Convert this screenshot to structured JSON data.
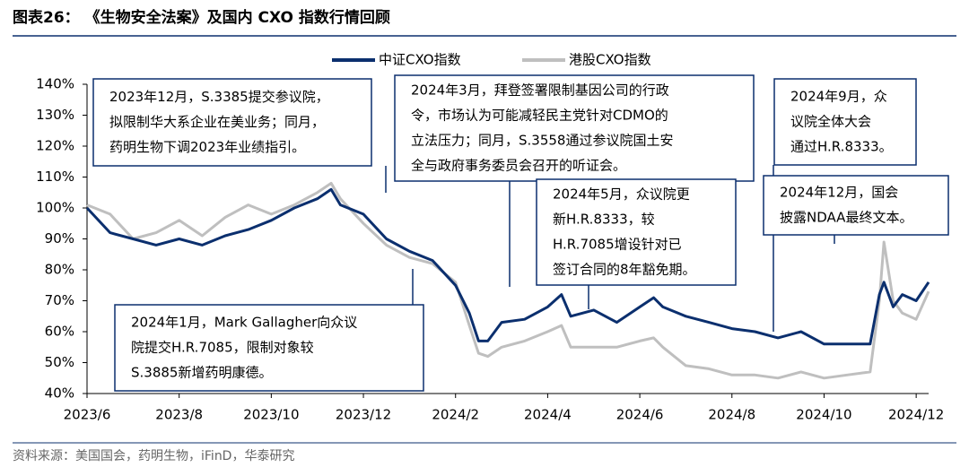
{
  "chart_data": {
    "type": "line",
    "title": "图表26：  《生物安全法案》及国内 CXO 指数行情回顾",
    "source": "资料来源：美国国会，药明生物，iFinD，华泰研究",
    "x": [
      0,
      0.5,
      1,
      1.5,
      2,
      2.5,
      3,
      3.5,
      4,
      4.5,
      5,
      5.3,
      5.5,
      6,
      6.5,
      7,
      7.5,
      8,
      8.3,
      8.5,
      8.7,
      9,
      9.5,
      10,
      10.3,
      10.5,
      11,
      11.5,
      12,
      12.3,
      12.5,
      13,
      13.5,
      14,
      14.5,
      15,
      15.5,
      16,
      16.5,
      17,
      17.2,
      17.3,
      17.5,
      17.7,
      18,
      18.27
    ],
    "series": [
      {
        "name": "中证CXO指数",
        "color": "#0b2f6e",
        "values": [
          100,
          92,
          90,
          88,
          90,
          88,
          91,
          93,
          96,
          100,
          103,
          106,
          101,
          98,
          90,
          86,
          83,
          75,
          66,
          57,
          57,
          63,
          64,
          68,
          72,
          65,
          67,
          63,
          68,
          71,
          68,
          65,
          63,
          61,
          60,
          58,
          60,
          56,
          56,
          56,
          72,
          76,
          68,
          72,
          70,
          76
        ]
      },
      {
        "name": "港股CXO指数",
        "color": "#bfbfbf",
        "values": [
          101,
          98,
          90,
          92,
          96,
          91,
          97,
          101,
          98,
          101,
          105,
          108,
          103,
          95,
          88,
          84,
          82,
          76,
          62,
          53,
          52,
          55,
          57,
          60,
          62,
          55,
          55,
          55,
          57,
          58,
          55,
          49,
          48,
          46,
          46,
          45,
          47,
          45,
          46,
          47,
          70,
          89,
          70,
          66,
          64,
          73
        ]
      }
    ],
    "xlim": [
      0,
      18.27
    ],
    "xticks": [
      {
        "value": 0,
        "label": "2023/6"
      },
      {
        "value": 2,
        "label": "2023/8"
      },
      {
        "value": 4,
        "label": "2023/10"
      },
      {
        "value": 6,
        "label": "2023/12"
      },
      {
        "value": 8,
        "label": "2024/2"
      },
      {
        "value": 10,
        "label": "2024/4"
      },
      {
        "value": 12,
        "label": "2024/6"
      },
      {
        "value": 14,
        "label": "2024/8"
      },
      {
        "value": 16,
        "label": "2024/10"
      },
      {
        "value": 18,
        "label": "2024/12"
      }
    ],
    "ylim": [
      40,
      140
    ],
    "yticks": [
      {
        "value": 40,
        "label": "40%"
      },
      {
        "value": 50,
        "label": "50%"
      },
      {
        "value": 60,
        "label": "60%"
      },
      {
        "value": 70,
        "label": "70%"
      },
      {
        "value": 80,
        "label": "80%"
      },
      {
        "value": 90,
        "label": "90%"
      },
      {
        "value": 100,
        "label": "100%"
      },
      {
        "value": 110,
        "label": "110%"
      },
      {
        "value": 120,
        "label": "120%"
      },
      {
        "value": 130,
        "label": "130%"
      },
      {
        "value": 140,
        "label": "140%"
      }
    ],
    "legend": "top",
    "annotations": [
      {
        "lines": [
          "2023年12月，S.3385提交参议院，",
          "拟限制华大系企业在美业务；同月，",
          "药明生物下调2023年业绩指引。"
        ]
      },
      {
        "lines": [
          "2024年3月，拜登签署限制基因公司的行政",
          "令，市场认为可能减轻民主党针对CDMO的",
          "立法压力；同月，S.3558通过参议院国土安",
          "全与政府事务委员会召开的听证会。"
        ]
      },
      {
        "lines": [
          "2024年5月，众议院更",
          "新H.R.8333，较",
          "H.R.7085增设针对已",
          "签订合同的8年豁免期。"
        ]
      },
      {
        "lines": [
          "2024年9月，众",
          "议院全体大会",
          "通过H.R.8333。"
        ]
      },
      {
        "lines": [
          "2024年12月，国会",
          "披露NDAA最终文本。"
        ]
      },
      {
        "lines": [
          "2024年1月，Mark Gallagher向众议",
          "院提交H.R.7085，限制对象较",
          "S.3885新增药明康德。"
        ]
      }
    ]
  }
}
